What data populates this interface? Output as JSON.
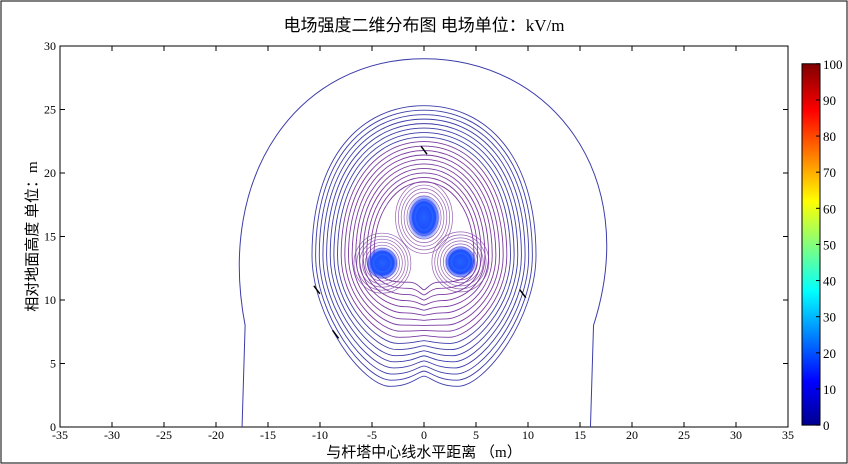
{
  "chart_data": {
    "type": "contour",
    "title": "电场强度二维分布图 电场单位：kV/m",
    "xlabel": "与杆塔中心线水平距离 （m）",
    "ylabel": "相对地面高度 单位：m",
    "xlim": [
      -35,
      35
    ],
    "ylim": [
      0,
      30
    ],
    "xticks": [
      -35,
      -30,
      -25,
      -20,
      -15,
      -10,
      -5,
      0,
      5,
      10,
      15,
      20,
      25,
      30,
      35
    ],
    "yticks": [
      0,
      5,
      10,
      15,
      20,
      25,
      30
    ],
    "colorbar": {
      "range": [
        0,
        100
      ],
      "ticks": [
        0,
        10,
        20,
        30,
        40,
        50,
        60,
        70,
        80,
        90,
        100
      ],
      "colormap": "jet"
    },
    "conductors": [
      {
        "x": 0,
        "y": 16.5
      },
      {
        "x": -4,
        "y": 12.9
      },
      {
        "x": 3.5,
        "y": 13.0
      }
    ],
    "contour_label": "1",
    "colors": {
      "contour_outer": "#3c3caa",
      "contour_inner": "#7a3aa0",
      "field_core": "#1f4dff"
    }
  }
}
